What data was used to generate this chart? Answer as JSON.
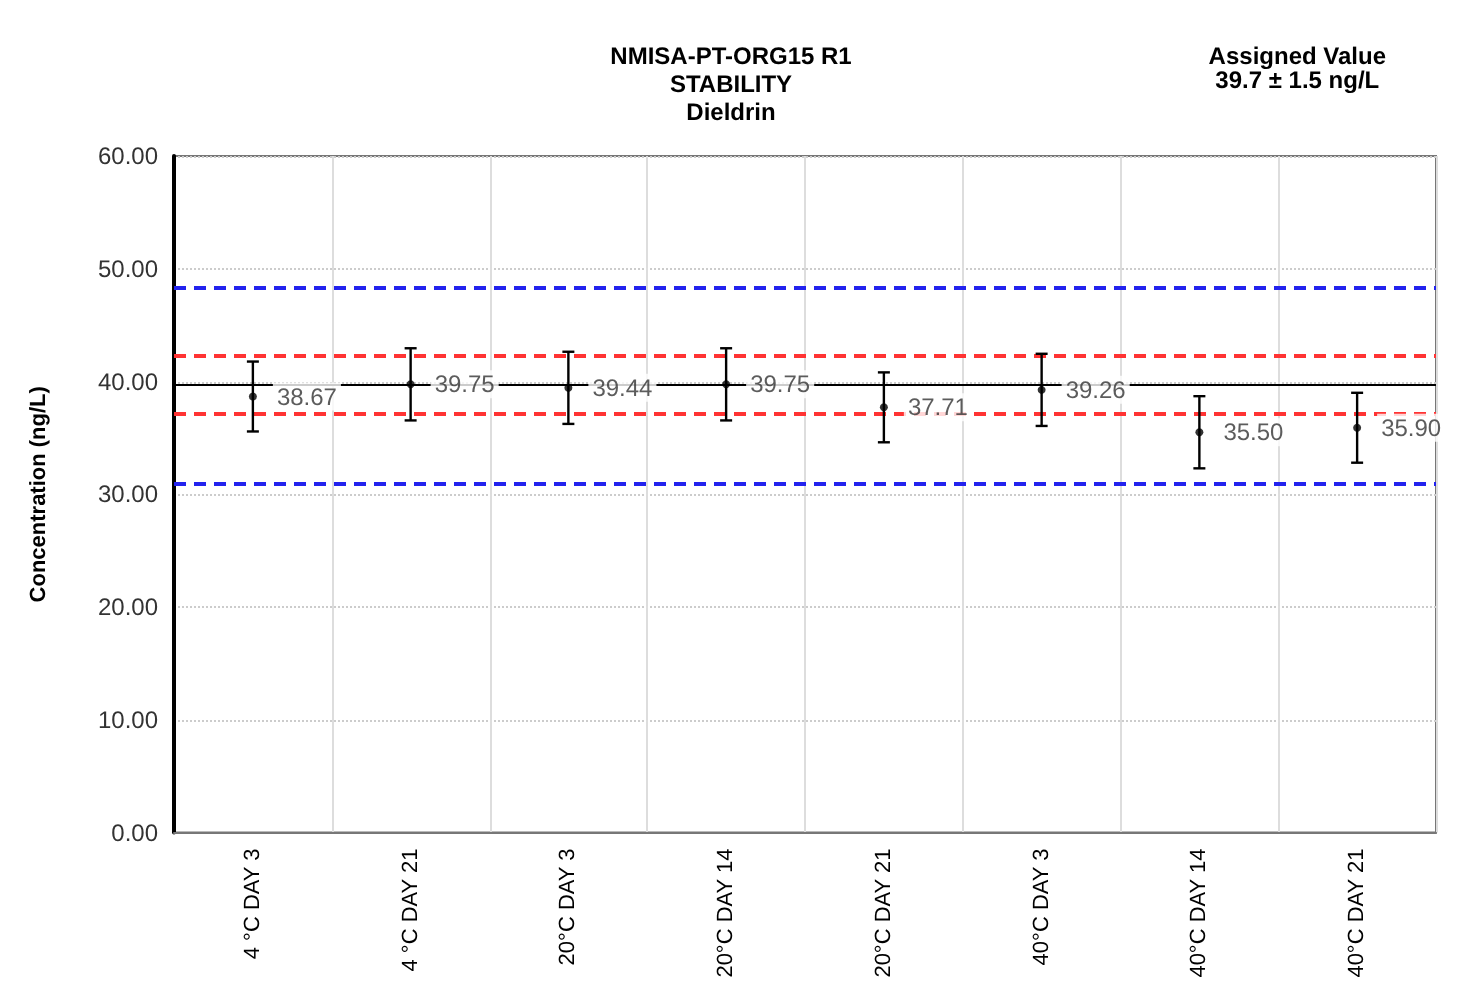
{
  "chart_data": {
    "type": "scatter",
    "title": "NMISA-PT-ORG15 R1\nSTABILITY\nDieldrin",
    "ylabel": "Concentration (ng/L)",
    "annotations": [
      "Assigned Value\n39.7 ± 1.5 ng/L"
    ],
    "categories": [
      "4 °C DAY 3",
      "4 °C DAY 21",
      "20°C DAY 3",
      "20°C DAY 14",
      "20°C DAY 21",
      "40°C DAY 3",
      "40°C DAY 14",
      "40°C DAY 21"
    ],
    "series": [
      {
        "color": "#000000",
        "values": [
          38.67,
          39.75,
          39.44,
          39.75,
          37.71,
          39.26,
          35.5,
          35.9
        ],
        "errors": [
          3.1,
          3.2,
          3.2,
          3.2,
          3.1,
          3.2,
          3.2,
          3.1
        ],
        "value_labels": [
          "38.67",
          "39.75",
          "39.44",
          "39.75",
          "37.71",
          "39.26",
          "35.50",
          "35.90"
        ]
      }
    ],
    "ylim": [
      0,
      60
    ],
    "yticks": [
      {
        "value": 0,
        "label": "0.00"
      },
      {
        "value": 10,
        "label": "10.00"
      },
      {
        "value": 20,
        "label": "20.00"
      },
      {
        "value": 30,
        "label": "30.00"
      },
      {
        "value": 40,
        "label": "40.00"
      },
      {
        "value": 50,
        "label": "50.00"
      },
      {
        "value": 60,
        "label": "60.00"
      }
    ],
    "ref_lines": [
      {
        "axis": "y",
        "value": 39.7,
        "color": "#000000",
        "line_style": "solid"
      },
      {
        "axis": "y",
        "value": 42.3,
        "color": "#ff3333",
        "line_style": "dashed"
      },
      {
        "axis": "y",
        "value": 37.1,
        "color": "#ff3333",
        "line_style": "dashed"
      },
      {
        "axis": "y",
        "value": 48.4,
        "color": "#2222ee",
        "line_style": "dashed"
      },
      {
        "axis": "y",
        "value": 31.0,
        "color": "#2222ee",
        "line_style": "dashed"
      }
    ],
    "grid": true,
    "marker": "circle"
  }
}
